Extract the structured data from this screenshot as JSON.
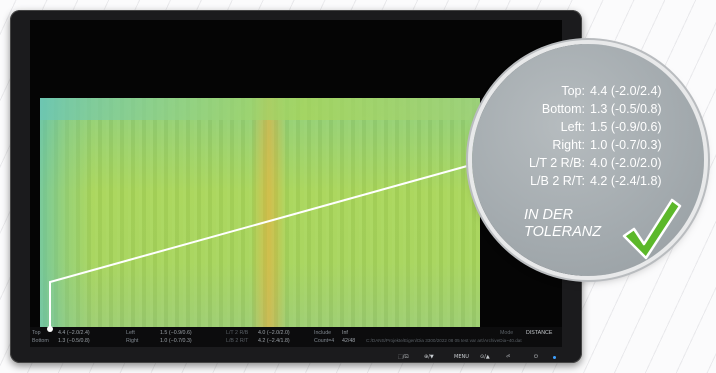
{
  "measurements": [
    {
      "label": "Top:",
      "value": "4.4 (-2.0/2.4)"
    },
    {
      "label": "Bottom:",
      "value": "1.3 (-0.5/0.8)"
    },
    {
      "label": "Left:",
      "value": "1.5 (-0.9/0.6)"
    },
    {
      "label": "Right:",
      "value": "1.0 (-0.7/0.3)"
    },
    {
      "label": "L/T 2 R/B:",
      "value": "4.0 (-2.0/2.0)"
    },
    {
      "label": "L/B 2 R/T:",
      "value": "4.2 (-2.4/1.8)"
    }
  ],
  "tolerance": {
    "line1": "IN DER",
    "line2": "TOLERANZ"
  },
  "statusbar": {
    "top_label": "Top",
    "top_value": "4.4 (−2.0/2.4)",
    "bottom_label": "Bottom",
    "bottom_value": "1.3 (−0.5/0.8)",
    "left_label": "Left",
    "left_value": "1.5 (−0.9/0.6)",
    "right_label": "Right",
    "right_value": "1.0 (−0.7/0.3)",
    "lt2rb_label": "L/T 2 R/B",
    "lt2rb_value": "4.0 (−2.0/2.0)",
    "lb2rt_label": "L/B 2 R/T",
    "lb2rt_value": "4.2 (−2.4/1.8)",
    "include_label": "Include",
    "include_value": "Inf",
    "count_label": "Count=4",
    "count_value": "42/48",
    "path": "C:/DANS/Projekte/Eigen/Dia 3300/2022 08 05 test var art/ArchiveDia~40.dat",
    "mode_label": "Mode",
    "distance_label": "DISTANCE"
  },
  "monitor_buttons": [
    "⬚/⊡",
    "⊕/▼",
    "MENU",
    "⊙/▲",
    "⏎",
    "⏻"
  ],
  "colors": {
    "heat_green": "#a7d55c",
    "heat_cyan": "#6cc6b6",
    "heat_orange": "#f0aa3c",
    "check_green": "#5cb82a"
  }
}
